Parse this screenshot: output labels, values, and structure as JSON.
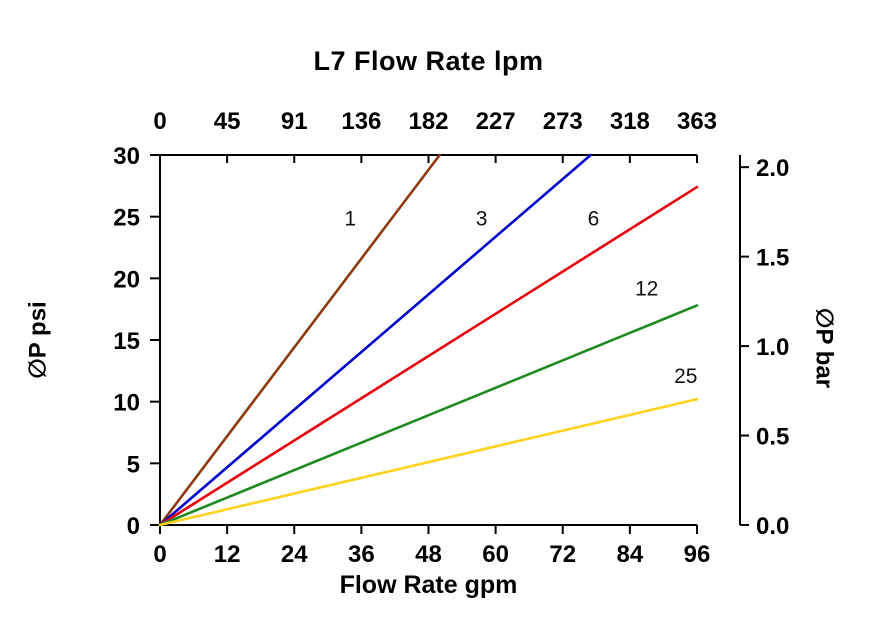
{
  "page": {
    "background": "#ffffff"
  },
  "chart_data": {
    "type": "line",
    "title": "L7 Flow Rate lpm",
    "axes": {
      "bottom": {
        "label": "Flow Rate gpm",
        "range": [
          0,
          96
        ],
        "tick_values": [
          0,
          12,
          24,
          36,
          48,
          60,
          72,
          84,
          96
        ],
        "tick_labels": [
          "0",
          "12",
          "24",
          "36",
          "48",
          "60",
          "72",
          "84",
          "96"
        ]
      },
      "top": {
        "unit": "lpm",
        "tick_labels": [
          "0",
          "45",
          "91",
          "136",
          "182",
          "227",
          "273",
          "318",
          "363"
        ]
      },
      "left": {
        "label": "∅P psi",
        "range": [
          0,
          30
        ],
        "tick_values": [
          0,
          5,
          10,
          15,
          20,
          25,
          30
        ],
        "tick_labels": [
          "0",
          "5",
          "10",
          "15",
          "20",
          "25",
          "30"
        ]
      },
      "right": {
        "label": "∅P bar",
        "range": [
          0,
          2.068
        ],
        "tick_values": [
          0,
          0.5,
          1,
          1.5,
          2
        ],
        "tick_labels": [
          "0.0",
          "0.5",
          "1.0",
          "1.5",
          "2.0"
        ]
      }
    },
    "grid": false,
    "legend": "inline-labels",
    "axis_color": "#000000",
    "text_color": "#000000",
    "series": [
      {
        "name": "1",
        "color": "#8B3A0B",
        "points": [
          [
            0,
            0
          ],
          [
            50,
            30
          ]
        ],
        "label_pos": [
          34,
          24.3
        ]
      },
      {
        "name": "3",
        "color": "#0000CC",
        "points": [
          [
            0,
            0
          ],
          [
            77,
            30
          ]
        ],
        "label_pos": [
          57.5,
          24.3
        ]
      },
      {
        "name": "6",
        "color": "#E8000D",
        "points": [
          [
            0,
            0
          ],
          [
            96,
            27.4
          ]
        ],
        "label_pos": [
          77.5,
          24.3
        ]
      },
      {
        "name": "12",
        "color": "#1F8A1F",
        "points": [
          [
            0,
            0
          ],
          [
            96,
            17.8
          ]
        ],
        "label_pos": [
          87,
          18.6
        ]
      },
      {
        "name": "25",
        "color": "#FFD21E",
        "points": [
          [
            0,
            0
          ],
          [
            96,
            10.2
          ]
        ],
        "label_pos": [
          94,
          11.5
        ]
      }
    ]
  }
}
